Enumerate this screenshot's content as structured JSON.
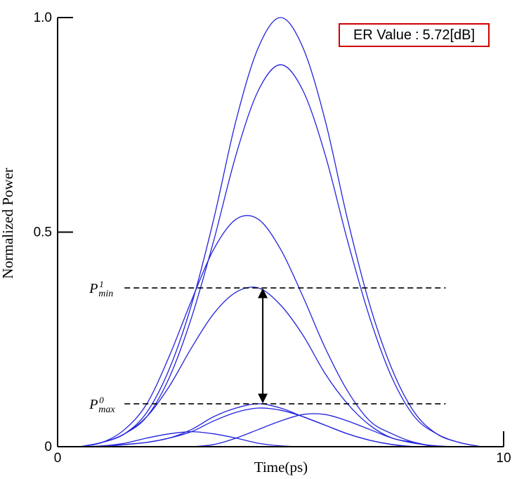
{
  "chart_data": {
    "type": "line",
    "title": "",
    "xlabel": "Time(ps)",
    "ylabel": "Normalized Power",
    "xlim": [
      0,
      10
    ],
    "ylim": [
      0,
      1.0
    ],
    "x_ticks": [
      "0",
      "10"
    ],
    "y_ticks": [
      "0",
      "0.5",
      "1.0"
    ],
    "line_color": "#2222dd",
    "pulse_time_ps": [
      0.5,
      1.0,
      1.5,
      2.0,
      2.5,
      3.0,
      3.5,
      4.0,
      4.5,
      5.0,
      5.5,
      6.0,
      6.5,
      7.0,
      7.5,
      8.0,
      8.5,
      9.0,
      9.5
    ],
    "series": [
      {
        "values": [
          0.0,
          0.01,
          0.03,
          0.08,
          0.18,
          0.33,
          0.53,
          0.76,
          0.93,
          1.0,
          0.93,
          0.76,
          0.53,
          0.33,
          0.18,
          0.08,
          0.03,
          0.01,
          0.0
        ]
      },
      {
        "values": [
          0.0,
          0.01,
          0.03,
          0.07,
          0.16,
          0.3,
          0.48,
          0.68,
          0.83,
          0.89,
          0.83,
          0.68,
          0.48,
          0.3,
          0.16,
          0.07,
          0.03,
          0.01,
          0.0
        ]
      },
      {
        "values": [
          0.0,
          0.01,
          0.04,
          0.1,
          0.21,
          0.34,
          0.46,
          0.53,
          0.53,
          0.46,
          0.35,
          0.23,
          0.13,
          0.06,
          0.03,
          0.01,
          0.0,
          0.0,
          0.0
        ]
      },
      {
        "values": [
          0.0,
          0.01,
          0.03,
          0.07,
          0.14,
          0.23,
          0.31,
          0.36,
          0.37,
          0.33,
          0.26,
          0.17,
          0.1,
          0.05,
          0.02,
          0.01,
          0.0,
          0.0,
          0.0
        ]
      },
      {
        "values": [
          0.0,
          0.0,
          0.005,
          0.01,
          0.02,
          0.04,
          0.07,
          0.09,
          0.1,
          0.09,
          0.07,
          0.05,
          0.03,
          0.015,
          0.005,
          0.0,
          0.0,
          0.0,
          0.0
        ]
      },
      {
        "values": [
          0.0,
          0.0,
          0.005,
          0.01,
          0.02,
          0.035,
          0.06,
          0.08,
          0.09,
          0.085,
          0.07,
          0.05,
          0.03,
          0.015,
          0.005,
          0.0,
          0.0,
          0.0,
          0.0
        ]
      },
      {
        "values": [
          0.0,
          0.002,
          0.008,
          0.02,
          0.03,
          0.035,
          0.03,
          0.02,
          0.008,
          0.002,
          0.0,
          0.0,
          0.0,
          0.0,
          0.0,
          0.0,
          0.0,
          0.0,
          0.0
        ]
      },
      {
        "values": [
          0.0,
          0.0,
          0.0,
          0.0,
          0.0,
          0.0,
          0.005,
          0.02,
          0.04,
          0.06,
          0.075,
          0.075,
          0.06,
          0.04,
          0.02,
          0.008,
          0.002,
          0.0,
          0.0
        ]
      }
    ],
    "threshold_lines": [
      {
        "label": "P",
        "sup": "1",
        "sub": "min",
        "y": 0.37,
        "x_range": [
          1.5,
          8.7
        ]
      },
      {
        "label": "P",
        "sup": "0",
        "sub": "max",
        "y": 0.1,
        "x_range": [
          1.5,
          8.7
        ]
      }
    ],
    "arrow": {
      "x": 4.6,
      "from_y": 0.1,
      "to_y": 0.37
    },
    "annotation": {
      "label": "ER Value",
      "separator": ":",
      "value": "5.72[dB]",
      "border_color": "#d00000"
    }
  }
}
